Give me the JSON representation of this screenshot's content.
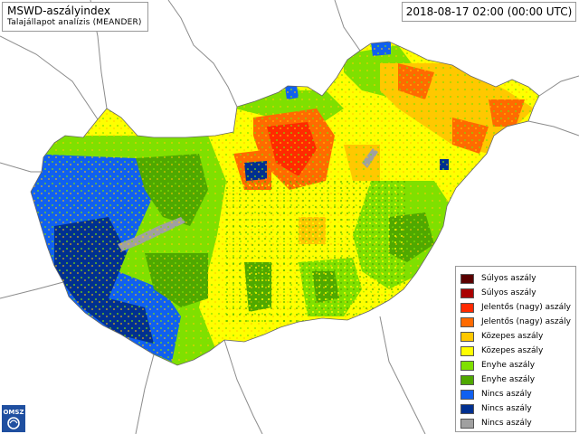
{
  "title": {
    "main": "MSWD-aszályindex",
    "subtitle": "Talajállapot analízis (MEANDER)"
  },
  "datetime": "2018-08-17 02:00 (00:00 UTC)",
  "legend": [
    {
      "label": "Súlyos aszály",
      "color": "#5a0000"
    },
    {
      "label": "Súlyos aszály",
      "color": "#aa0000"
    },
    {
      "label": "Jelentős (nagy) aszály",
      "color": "#ff2a00"
    },
    {
      "label": "Jelentős (nagy) aszály",
      "color": "#ff6a00"
    },
    {
      "label": "Közepes aszály",
      "color": "#ffc800"
    },
    {
      "label": "Közepes aszály",
      "color": "#ffff00"
    },
    {
      "label": "Enyhe aszály",
      "color": "#7fe000"
    },
    {
      "label": "Enyhe aszály",
      "color": "#4fa800"
    },
    {
      "label": "Nincs aszály",
      "color": "#1060f0"
    },
    {
      "label": "Nincs aszály",
      "color": "#003090"
    },
    {
      "label": "Nincs aszály",
      "color": "#a0a0a0"
    }
  ],
  "logo": {
    "text": "OMSZ"
  }
}
